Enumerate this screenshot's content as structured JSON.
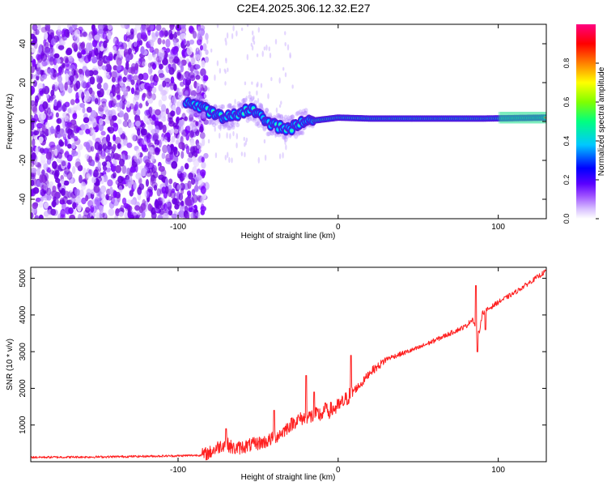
{
  "title": "C2E4.2025.306.12.32.E27",
  "chart_data": [
    {
      "type": "heatmap",
      "title": "C2E4.2025.306.12.32.E27",
      "xlabel": "Height of straight line (km)",
      "ylabel": "Frequency (Hz)",
      "xlim": [
        -192,
        130
      ],
      "ylim": [
        -50,
        50
      ],
      "xticks": [
        -100,
        0,
        100
      ],
      "xtick_labels": [
        "-100",
        "0",
        "100"
      ],
      "yticks": [
        -40,
        -20,
        0,
        20,
        40
      ],
      "ytick_labels": [
        "-40",
        "-20",
        "0",
        "20",
        "40"
      ],
      "colorbar": {
        "label": "Normalized spectral amplitude",
        "range": [
          0,
          1
        ],
        "ticks": [
          0,
          0.2,
          0.4,
          0.6,
          0.8
        ],
        "tick_labels": [
          "0.0",
          "0.2",
          "0.4",
          "0.6",
          "0.8"
        ],
        "colors": [
          "#ffffff",
          "#c8a0ff",
          "#7a00ff",
          "#0000ff",
          "#00c8ff",
          "#00ff80",
          "#80ff00",
          "#ffff00",
          "#ff8000",
          "#ff0000",
          "#ff0080"
        ]
      },
      "features": {
        "noise_region_x": [
          -192,
          -88
        ],
        "onset_x": -92,
        "dominant_frequency_hz": 1,
        "ridge": [
          [
            -95,
            10
          ],
          [
            -88,
            8
          ],
          [
            -80,
            5
          ],
          [
            -72,
            2
          ],
          [
            -65,
            3
          ],
          [
            -60,
            5
          ],
          [
            -55,
            7
          ],
          [
            -50,
            4
          ],
          [
            -45,
            0
          ],
          [
            -40,
            -2
          ],
          [
            -35,
            -3
          ],
          [
            -30,
            -4
          ],
          [
            -25,
            -1
          ],
          [
            -20,
            0
          ],
          [
            -10,
            1
          ],
          [
            0,
            2
          ],
          [
            20,
            1.5
          ],
          [
            60,
            1.5
          ],
          [
            90,
            1.5
          ],
          [
            130,
            2
          ]
        ],
        "colors": {
          "low": "#8a2be2",
          "mid": "#00ccff",
          "high": "#ff1060"
        }
      }
    },
    {
      "type": "line",
      "xlabel": "Height of straight line (km)",
      "ylabel": "SNR (10 * v/v)",
      "xlim": [
        -192,
        130
      ],
      "ylim": [
        0,
        5300
      ],
      "xticks": [
        -100,
        0,
        100
      ],
      "xtick_labels": [
        "-100",
        "0",
        "100"
      ],
      "yticks": [
        1000,
        2000,
        3000,
        4000,
        5000
      ],
      "ytick_labels": [
        "1000",
        "2000",
        "3000",
        "4000",
        "5000"
      ],
      "series": [
        {
          "name": "SNR",
          "color": "#ff2020",
          "x": [
            -192,
            -150,
            -100,
            -85,
            -80,
            -75,
            -70,
            -65,
            -60,
            -55,
            -50,
            -45,
            -40,
            -35,
            -30,
            -25,
            -20,
            -15,
            -10,
            -5,
            0,
            5,
            10,
            15,
            20,
            25,
            30,
            40,
            50,
            60,
            70,
            80,
            84,
            86,
            88,
            90,
            95,
            100,
            110,
            120,
            130
          ],
          "y": [
            120,
            130,
            160,
            180,
            250,
            400,
            500,
            350,
            400,
            450,
            500,
            550,
            650,
            800,
            1000,
            1150,
            1200,
            1250,
            1300,
            1400,
            1500,
            1700,
            1950,
            2150,
            2450,
            2600,
            2800,
            2950,
            3100,
            3300,
            3500,
            3700,
            3900,
            3600,
            3500,
            4050,
            4200,
            4350,
            4600,
            4900,
            5200
          ],
          "spikes": [
            [
              -70,
              900
            ],
            [
              -40,
              1400
            ],
            [
              -20,
              2350
            ],
            [
              -15,
              1900
            ],
            [
              -8,
              1600
            ],
            [
              8,
              2900
            ],
            [
              86,
              4800
            ],
            [
              87,
              3000
            ],
            [
              92,
              3600
            ]
          ]
        }
      ]
    }
  ]
}
